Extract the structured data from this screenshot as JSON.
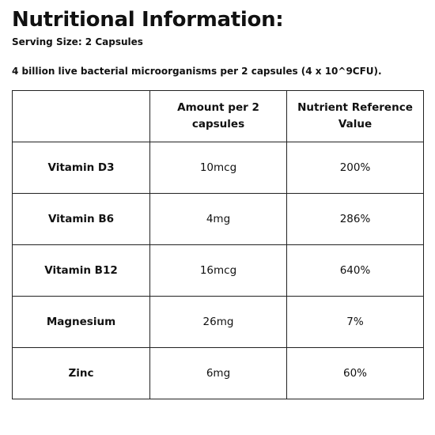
{
  "title": "Nutritional Information:",
  "serving_size": "Serving Size: 2 Capsules",
  "note": "4 billion live bacterial microorganisms per 2 capsules (4 x 10^9CFU).",
  "table": {
    "headers": [
      "",
      "Amount per 2 capsules",
      "Nutrient Reference Value"
    ],
    "rows": [
      {
        "nutrient": "Vitamin D3",
        "amount": "10mcg",
        "nrv": "200%"
      },
      {
        "nutrient": "Vitamin B6",
        "amount": "4mg",
        "nrv": "286%"
      },
      {
        "nutrient": "Vitamin B12",
        "amount": "16mcg",
        "nrv": "640%"
      },
      {
        "nutrient": "Magnesium",
        "amount": "26mg",
        "nrv": "7%"
      },
      {
        "nutrient": "Zinc",
        "amount": "6mg",
        "nrv": "60%"
      }
    ]
  }
}
